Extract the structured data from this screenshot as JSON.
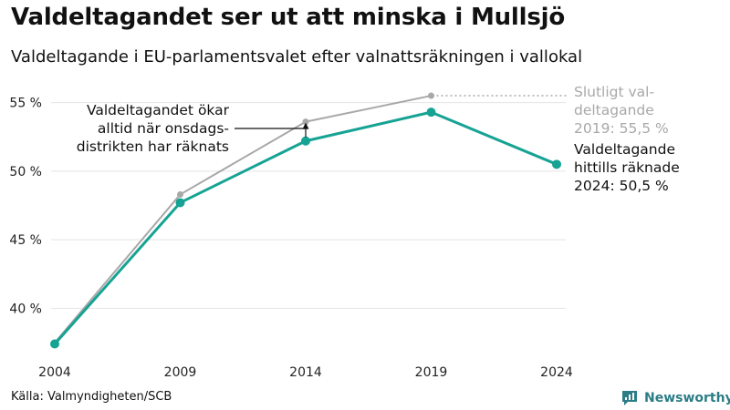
{
  "title": "Valdeltagandet ser ut att minska i Mullsjö",
  "subtitle": "Valdeltagande i EU-parlamentsvalet efter valnattsräkningen i vallokal",
  "source": "Källa: Valmyndigheten/SCB",
  "brand": "Newsworthy",
  "colors": {
    "current": "#16a394",
    "final": "#a8a8a8",
    "text": "#111111",
    "grid": "#e4e4e4",
    "brand": "#2c7d86"
  },
  "chart_data": {
    "type": "line",
    "x": [
      2004,
      2009,
      2014,
      2019,
      2024
    ],
    "series": [
      {
        "values": [
          37.5,
          48.3,
          53.6,
          55.5,
          null
        ],
        "color": "#a8a8a8"
      },
      {
        "values": [
          37.4,
          47.7,
          52.2,
          54.3,
          50.5
        ],
        "color": "#16a394"
      }
    ],
    "ylim": [
      37.5,
      56.5
    ],
    "yticks": [
      40,
      45,
      50,
      55
    ],
    "ytick_labels": [
      "40 %",
      "45 %",
      "50 %",
      "55 %"
    ],
    "xtick_labels": [
      "2004",
      "2009",
      "2014",
      "2019",
      "2024"
    ],
    "grid": true,
    "annotations": {
      "increase_note": [
        "Valdeltagandet ökar",
        "alltid när onsdags-",
        "distrikten har räknats"
      ],
      "final_label": [
        "Slutligt val-",
        "deltagande",
        "2019: 55,5 %"
      ],
      "current_label": [
        "Valdeltagande",
        "hittills räknade",
        "2024: 50,5 %"
      ]
    }
  }
}
